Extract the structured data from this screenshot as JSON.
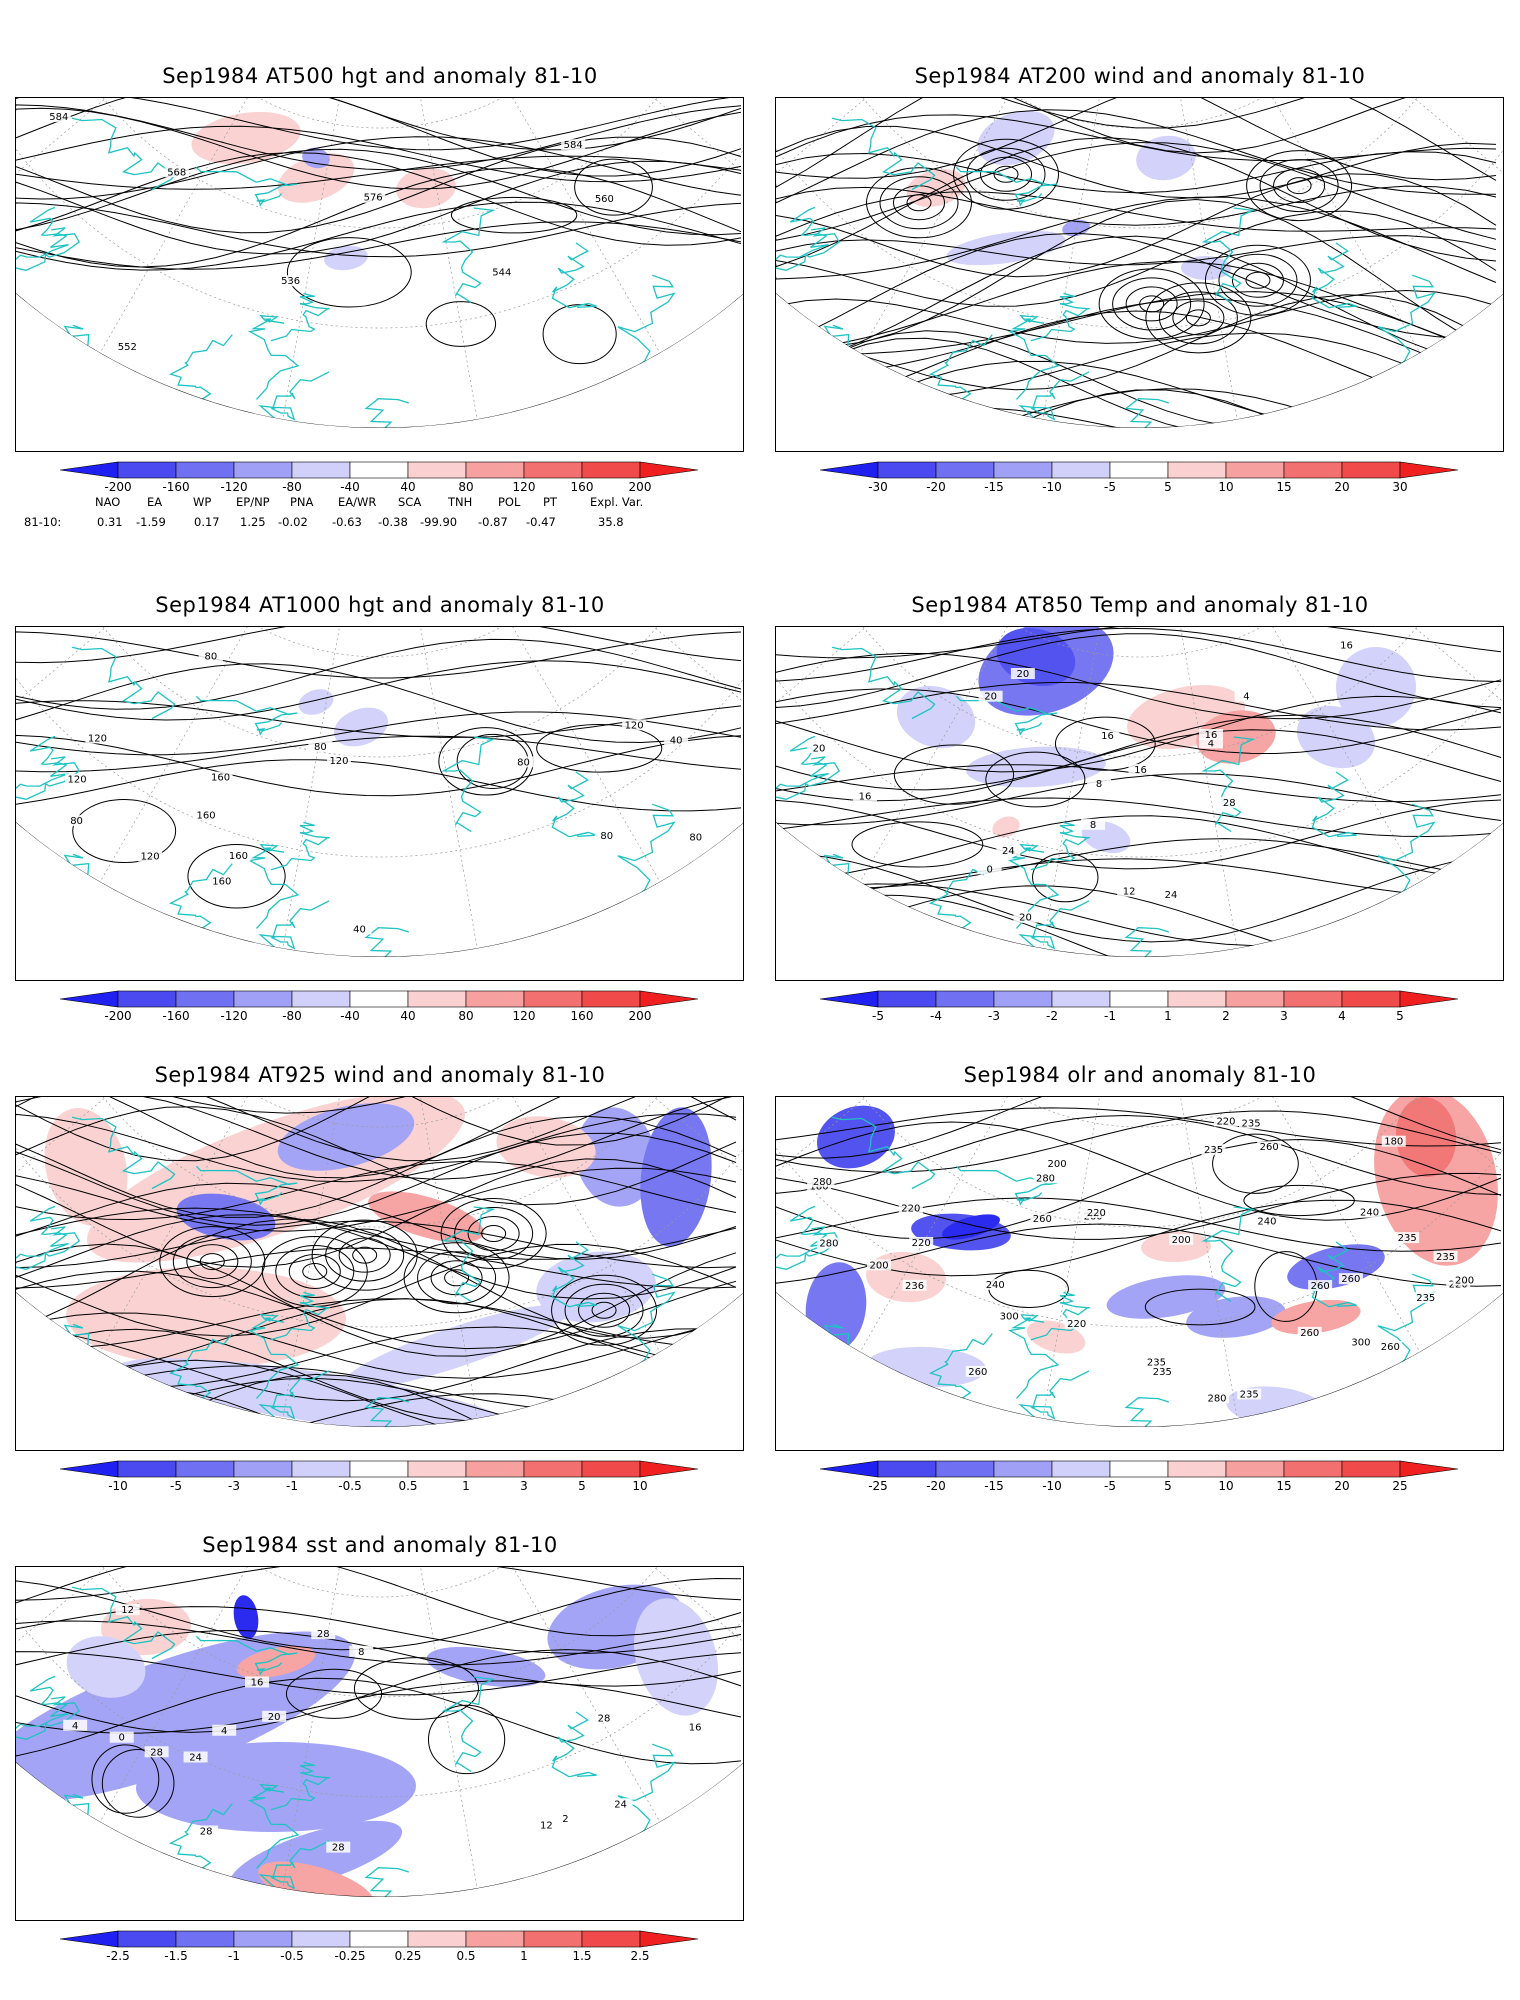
{
  "panels": [
    {
      "id": "p1",
      "title": "Sep1984 AT500 hgt and anomaly 81-10",
      "contour_labels": [
        "584",
        "536",
        "544",
        "552",
        "560",
        "568",
        "576",
        "584"
      ],
      "colorbar": {
        "labels": [
          "-200",
          "-160",
          "-120",
          "-80",
          "-40",
          "40",
          "80",
          "120",
          "160",
          "200"
        ],
        "colors": [
          "#2020f0",
          "#4a4af0",
          "#7070f2",
          "#a0a0f6",
          "#d0d0fa",
          "#ffffff",
          "#fad0d0",
          "#f6a0a0",
          "#f27070",
          "#f04a4a",
          "#f02020"
        ]
      }
    },
    {
      "id": "p2",
      "title": "Sep1984 AT200 wind and anomaly 81-10",
      "colorbar": {
        "labels": [
          "-30",
          "-20",
          "-15",
          "-10",
          "-5",
          "5",
          "10",
          "15",
          "20",
          "30"
        ],
        "colors": [
          "#2020f0",
          "#4a4af0",
          "#7070f2",
          "#a0a0f6",
          "#d0d0fa",
          "#ffffff",
          "#fad0d0",
          "#f6a0a0",
          "#f27070",
          "#f04a4a",
          "#f02020"
        ]
      }
    },
    {
      "id": "p3",
      "title": "Sep1984 AT1000 hgt and anomaly 81-10",
      "contour_labels": [
        "80",
        "80",
        "120",
        "40",
        "160",
        "40",
        "80",
        "160",
        "160",
        "120",
        "80",
        "120",
        "80",
        "160",
        "120",
        "80",
        "120"
      ],
      "colorbar": {
        "labels": [
          "-200",
          "-160",
          "-120",
          "-80",
          "-40",
          "40",
          "80",
          "120",
          "160",
          "200"
        ],
        "colors": [
          "#2020f0",
          "#4a4af0",
          "#7070f2",
          "#a0a0f6",
          "#d0d0fa",
          "#ffffff",
          "#fad0d0",
          "#f6a0a0",
          "#f27070",
          "#f04a4a",
          "#f02020"
        ]
      }
    },
    {
      "id": "p4",
      "title": "Sep1984 AT850 Temp and anomaly 81-10",
      "contour_labels": [
        "20",
        "24",
        "0",
        "4",
        "8",
        "16",
        "4",
        "8",
        "28",
        "16",
        "12",
        "20",
        "24",
        "16",
        "16",
        "20",
        "20",
        "16"
      ],
      "colorbar": {
        "labels": [
          "-5",
          "-4",
          "-3",
          "-2",
          "-1",
          "1",
          "2",
          "3",
          "4",
          "5"
        ],
        "colors": [
          "#2020f0",
          "#4a4af0",
          "#7070f2",
          "#a0a0f6",
          "#d0d0fa",
          "#ffffff",
          "#fad0d0",
          "#f6a0a0",
          "#f27070",
          "#f04a4a",
          "#f02020"
        ]
      }
    },
    {
      "id": "p5",
      "title": "Sep1984 AT925 wind and anomaly 81-10",
      "colorbar": {
        "labels": [
          "-10",
          "-5",
          "-3",
          "-1",
          "-0.5",
          "0.5",
          "1",
          "3",
          "5",
          "10"
        ],
        "colors": [
          "#2020f0",
          "#4a4af0",
          "#7070f2",
          "#a0a0f6",
          "#d0d0fa",
          "#ffffff",
          "#fad0d0",
          "#f6a0a0",
          "#f27070",
          "#f04a4a",
          "#f02020"
        ]
      }
    },
    {
      "id": "p6",
      "title": "Sep1984 olr and anomaly 81-10",
      "contour_labels": [
        "180",
        "220",
        "260",
        "200",
        "180",
        "235",
        "220",
        "260",
        "235",
        "240",
        "220",
        "260",
        "280",
        "235",
        "235",
        "240",
        "260",
        "260",
        "300",
        "280",
        "200",
        "236",
        "260",
        "280",
        "300",
        "235",
        "240",
        "260",
        "220",
        "280",
        "220",
        "200",
        "235",
        "235",
        "220",
        "200",
        "235",
        "260"
      ],
      "colorbar": {
        "labels": [
          "-25",
          "-20",
          "-15",
          "-10",
          "-5",
          "5",
          "10",
          "15",
          "20",
          "25"
        ],
        "colors": [
          "#2020f0",
          "#4a4af0",
          "#7070f2",
          "#a0a0f6",
          "#d0d0fa",
          "#ffffff",
          "#fad0d0",
          "#f6a0a0",
          "#f27070",
          "#f04a4a",
          "#f02020"
        ]
      }
    },
    {
      "id": "p7",
      "title": "Sep1984 sst and anomaly 81-10",
      "contour_labels": [
        "28",
        "24",
        "28",
        "28",
        "4",
        "2",
        "0",
        "4",
        "12",
        "8",
        "12",
        "20",
        "16",
        "16",
        "24",
        "28",
        "28"
      ],
      "colorbar": {
        "labels": [
          "-2.5",
          "-1.5",
          "-1",
          "-0.5",
          "-0.25",
          "0.25",
          "0.5",
          "1",
          "1.5",
          "2.5"
        ],
        "colors": [
          "#2020f0",
          "#4a4af0",
          "#7070f2",
          "#a0a0f6",
          "#d0d0fa",
          "#ffffff",
          "#fad0d0",
          "#f6a0a0",
          "#f27070",
          "#f04a4a",
          "#f02020"
        ]
      }
    }
  ],
  "indices": {
    "names": [
      "NAO",
      "EA",
      "WP",
      "EP/NP",
      "PNA",
      "EA/WR",
      "SCA",
      "TNH",
      "POL",
      "PT",
      "Expl. Var."
    ],
    "row_label": "81-10:",
    "values": [
      "0.31",
      "-1.59",
      "0.17",
      "1.25",
      "-0.02",
      "-0.63",
      "-0.38",
      "-99.90",
      "-0.87",
      "-0.47",
      "35.8"
    ]
  },
  "map_colors": {
    "coast": "#1ec3c3",
    "grid": "#9a9a9a",
    "contour": "#000000"
  }
}
